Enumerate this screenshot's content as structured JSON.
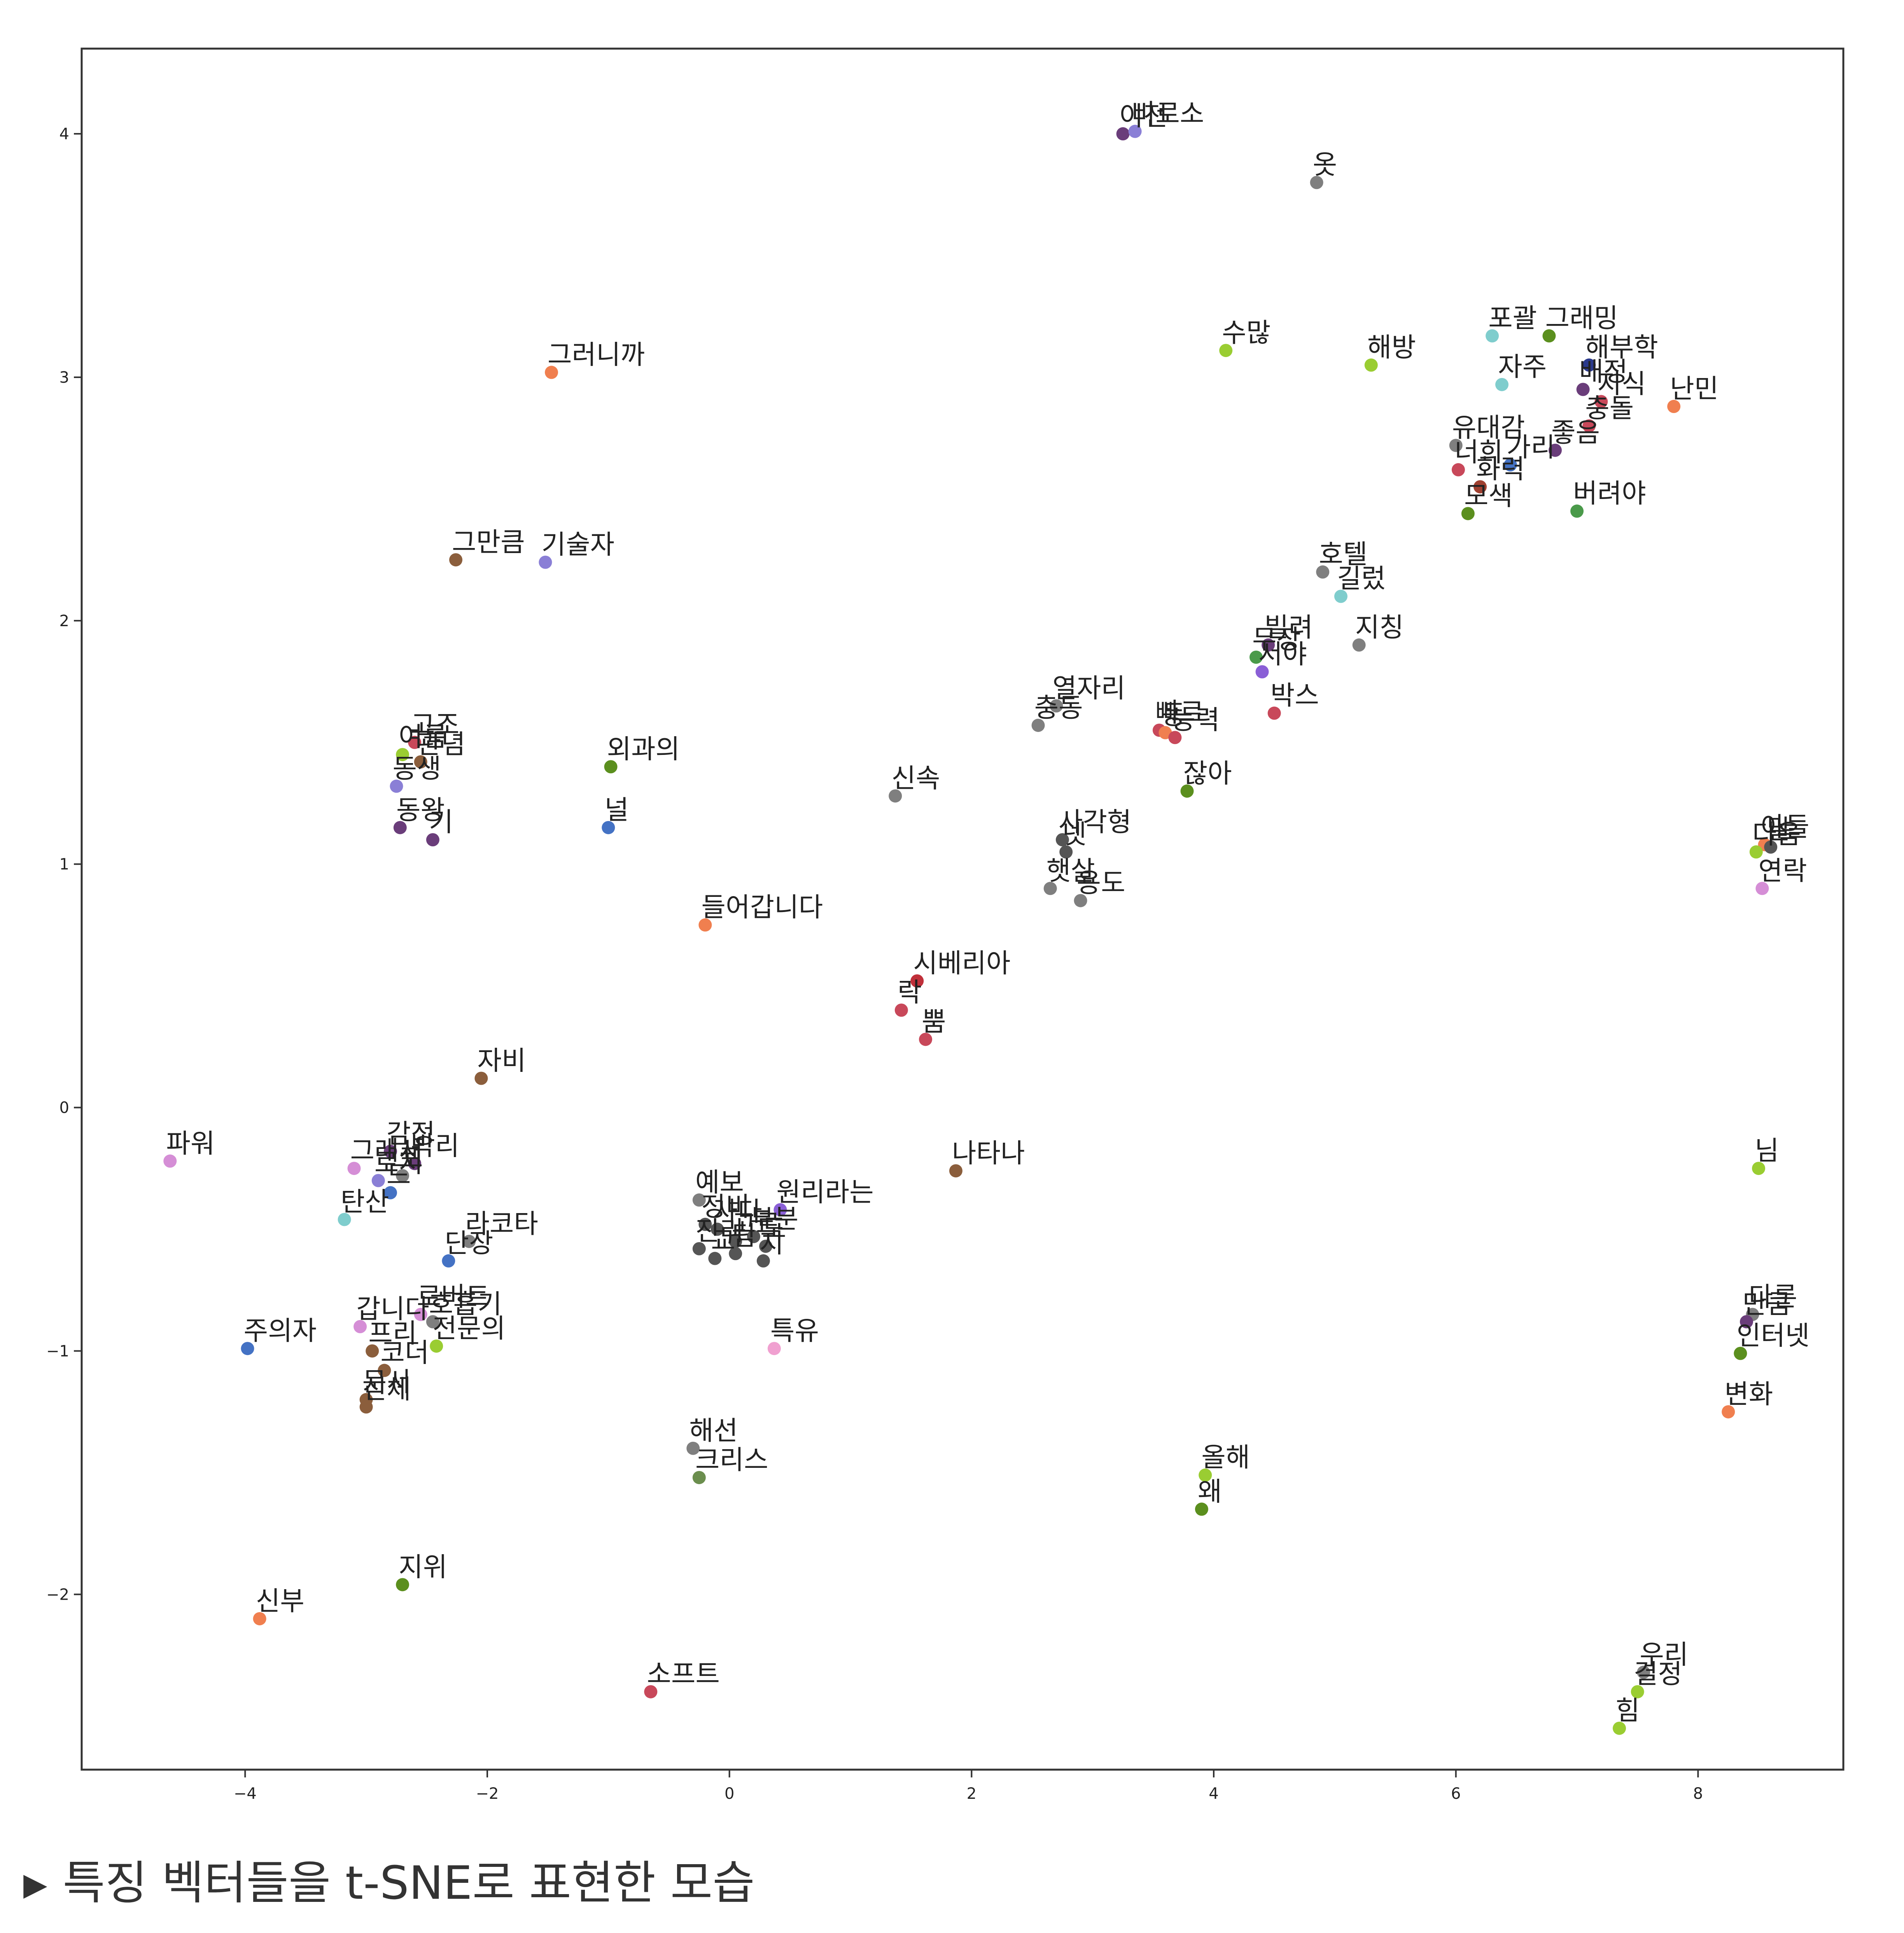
{
  "caption": {
    "marker": "▶",
    "text": "특징 벡터들을 t-SNE로 표현한 모습"
  },
  "chart_data": {
    "type": "scatter",
    "title": "",
    "xlabel": "",
    "ylabel": "",
    "xlim": [
      -5.35,
      9.2
    ],
    "ylim": [
      -2.72,
      4.35
    ],
    "grid": false,
    "xticks": [
      -4,
      -2,
      0,
      2,
      4,
      6,
      8
    ],
    "yticks": [
      -2,
      -1,
      0,
      1,
      2,
      3,
      4
    ],
    "points": [
      {
        "label": "이전",
        "x": 3.25,
        "y": 4.0,
        "color": "#6a3d7a"
      },
      {
        "label": "비로소",
        "x": 3.35,
        "y": 4.01,
        "color": "#8a7fd6"
      },
      {
        "label": "옷",
        "x": 4.85,
        "y": 3.8,
        "color": "#7f7f7f"
      },
      {
        "label": "해방",
        "x": 5.3,
        "y": 3.05,
        "color": "#9acd32"
      },
      {
        "label": "수많",
        "x": 4.1,
        "y": 3.11,
        "color": "#9acd32"
      },
      {
        "label": "포괄",
        "x": 6.3,
        "y": 3.17,
        "color": "#7fcdcd"
      },
      {
        "label": "자주",
        "x": 6.38,
        "y": 2.97,
        "color": "#7fcdcd"
      },
      {
        "label": "그래밍",
        "x": 6.77,
        "y": 3.17,
        "color": "#5b8f1e"
      },
      {
        "label": "해부학",
        "x": 7.1,
        "y": 3.05,
        "color": "#2b3a8c"
      },
      {
        "label": "배정",
        "x": 7.05,
        "y": 2.95,
        "color": "#6a3d7a"
      },
      {
        "label": "지식",
        "x": 7.2,
        "y": 2.9,
        "color": "#c8485a"
      },
      {
        "label": "난민",
        "x": 7.8,
        "y": 2.88,
        "color": "#f07f4f"
      },
      {
        "label": "유대감",
        "x": 6.0,
        "y": 2.72,
        "color": "#7f7f7f"
      },
      {
        "label": "충돌",
        "x": 7.1,
        "y": 2.8,
        "color": "#c8485a"
      },
      {
        "label": "좋음",
        "x": 6.82,
        "y": 2.7,
        "color": "#6a3d7a"
      },
      {
        "label": "너희",
        "x": 6.02,
        "y": 2.62,
        "color": "#c8485a"
      },
      {
        "label": "화력",
        "x": 6.2,
        "y": 2.55,
        "color": "#a04030"
      },
      {
        "label": "가리",
        "x": 6.45,
        "y": 2.64,
        "color": "#4472c4"
      },
      {
        "label": "모색",
        "x": 6.1,
        "y": 2.44,
        "color": "#5b8f1e"
      },
      {
        "label": "버려야",
        "x": 7.0,
        "y": 2.45,
        "color": "#4a9a4a"
      },
      {
        "label": "그러니까",
        "x": -1.47,
        "y": 3.02,
        "color": "#f07f4f"
      },
      {
        "label": "그만큼",
        "x": -2.26,
        "y": 2.25,
        "color": "#8b5e3c"
      },
      {
        "label": "기술자",
        "x": -1.52,
        "y": 2.24,
        "color": "#8a7fd6"
      },
      {
        "label": "호텔",
        "x": 4.9,
        "y": 2.2,
        "color": "#7f7f7f"
      },
      {
        "label": "길렀",
        "x": 5.05,
        "y": 2.1,
        "color": "#7fcdcd"
      },
      {
        "label": "빌려",
        "x": 4.45,
        "y": 1.9,
        "color": "#6a3d7a"
      },
      {
        "label": "무장",
        "x": 4.35,
        "y": 1.85,
        "color": "#4a9a4a"
      },
      {
        "label": "지칭",
        "x": 5.2,
        "y": 1.9,
        "color": "#7f7f7f"
      },
      {
        "label": "서야",
        "x": 4.4,
        "y": 1.79,
        "color": "#8a5fd6"
      },
      {
        "label": "박스",
        "x": 4.5,
        "y": 1.62,
        "color": "#c8485a"
      },
      {
        "label": "열자리",
        "x": 2.7,
        "y": 1.65,
        "color": "#7f7f7f"
      },
      {
        "label": "충동",
        "x": 2.55,
        "y": 1.57,
        "color": "#7f7f7f"
      },
      {
        "label": "빠르",
        "x": 3.55,
        "y": 1.55,
        "color": "#c8485a"
      },
      {
        "label": "등",
        "x": 3.6,
        "y": 1.54,
        "color": "#f07f4f"
      },
      {
        "label": "능력",
        "x": 3.68,
        "y": 1.52,
        "color": "#c8485a"
      },
      {
        "label": "잖아",
        "x": 3.78,
        "y": 1.3,
        "color": "#5b8f1e"
      },
      {
        "label": "신속",
        "x": 1.37,
        "y": 1.28,
        "color": "#7f7f7f"
      },
      {
        "label": "사각형",
        "x": 2.75,
        "y": 1.1,
        "color": "#555555"
      },
      {
        "label": "넷",
        "x": 2.78,
        "y": 1.05,
        "color": "#555555"
      },
      {
        "label": "햇살",
        "x": 2.65,
        "y": 0.9,
        "color": "#7f7f7f"
      },
      {
        "label": "용도",
        "x": 2.9,
        "y": 0.85,
        "color": "#7f7f7f"
      },
      {
        "label": "고조",
        "x": -2.6,
        "y": 1.5,
        "color": "#c8485a"
      },
      {
        "label": "여름",
        "x": -2.7,
        "y": 1.45,
        "color": "#9acd32"
      },
      {
        "label": "관념",
        "x": -2.55,
        "y": 1.42,
        "color": "#8b5e3c"
      },
      {
        "label": "동생",
        "x": -2.75,
        "y": 1.32,
        "color": "#8a7fd6"
      },
      {
        "label": "외과의",
        "x": -0.98,
        "y": 1.4,
        "color": "#5b8f1e"
      },
      {
        "label": "널",
        "x": -1.0,
        "y": 1.15,
        "color": "#4472c4"
      },
      {
        "label": "동왕",
        "x": -2.72,
        "y": 1.15,
        "color": "#6a3d7a"
      },
      {
        "label": "기",
        "x": -2.45,
        "y": 1.1,
        "color": "#6a3d7a"
      },
      {
        "label": "들어갑니다",
        "x": -0.2,
        "y": 0.75,
        "color": "#f07f4f"
      },
      {
        "label": "시베리아",
        "x": 1.55,
        "y": 0.52,
        "color": "#c0303a"
      },
      {
        "label": "락",
        "x": 1.42,
        "y": 0.4,
        "color": "#c8485a"
      },
      {
        "label": "뿜",
        "x": 1.62,
        "y": 0.28,
        "color": "#c8485a"
      },
      {
        "label": "파워",
        "x": -4.62,
        "y": -0.22,
        "color": "#d58ed6"
      },
      {
        "label": "자비",
        "x": -2.05,
        "y": 0.12,
        "color": "#8b5e3c"
      },
      {
        "label": "감정",
        "x": -2.8,
        "y": -0.18,
        "color": "#6a3d7a"
      },
      {
        "label": "그래서",
        "x": -3.1,
        "y": -0.25,
        "color": "#d58ed6"
      },
      {
        "label": "박리",
        "x": -2.6,
        "y": -0.23,
        "color": "#6a3d7a"
      },
      {
        "label": "로지",
        "x": -2.9,
        "y": -0.3,
        "color": "#8a7fd6"
      },
      {
        "label": "포",
        "x": -2.7,
        "y": -0.28,
        "color": "#7f7f7f"
      },
      {
        "label": "드",
        "x": -2.8,
        "y": -0.35,
        "color": "#4472c4"
      },
      {
        "label": "탄산",
        "x": -3.18,
        "y": -0.46,
        "color": "#7fcdcd"
      },
      {
        "label": "단장",
        "x": -2.32,
        "y": -0.63,
        "color": "#4472c4"
      },
      {
        "label": "라코타",
        "x": -2.15,
        "y": -0.55,
        "color": "#7f7f7f"
      },
      {
        "label": "나타나",
        "x": 1.87,
        "y": -0.26,
        "color": "#8b5e3c"
      },
      {
        "label": "예보",
        "x": -0.25,
        "y": -0.38,
        "color": "#7f7f7f"
      },
      {
        "label": "원리라는",
        "x": 0.42,
        "y": -0.42,
        "color": "#8a5fd6"
      },
      {
        "label": "정비",
        "x": -0.2,
        "y": -0.48,
        "color": "#555555"
      },
      {
        "label": "사다",
        "x": -0.1,
        "y": -0.5,
        "color": "#555555"
      },
      {
        "label": "고르",
        "x": 0.05,
        "y": -0.55,
        "color": "#555555"
      },
      {
        "label": "부분",
        "x": 0.2,
        "y": -0.53,
        "color": "#555555"
      },
      {
        "label": "진리",
        "x": -0.25,
        "y": -0.58,
        "color": "#555555"
      },
      {
        "label": "도",
        "x": 0.3,
        "y": -0.57,
        "color": "#555555"
      },
      {
        "label": "교",
        "x": -0.12,
        "y": -0.62,
        "color": "#555555"
      },
      {
        "label": "팀",
        "x": 0.05,
        "y": -0.6,
        "color": "#555555"
      },
      {
        "label": "지",
        "x": 0.28,
        "y": -0.63,
        "color": "#555555"
      },
      {
        "label": "주의자",
        "x": -3.98,
        "y": -0.99,
        "color": "#4472c4"
      },
      {
        "label": "갑니다",
        "x": -3.05,
        "y": -0.9,
        "color": "#d58ed6"
      },
      {
        "label": "로버트",
        "x": -2.55,
        "y": -0.85,
        "color": "#d58ed6"
      },
      {
        "label": "호흡기",
        "x": -2.45,
        "y": -0.88,
        "color": "#7f7f7f"
      },
      {
        "label": "프리",
        "x": -2.95,
        "y": -1.0,
        "color": "#8b5e3c"
      },
      {
        "label": "코더",
        "x": -2.85,
        "y": -1.08,
        "color": "#8b5e3c"
      },
      {
        "label": "전문의",
        "x": -2.42,
        "y": -0.98,
        "color": "#9acd32"
      },
      {
        "label": "문서",
        "x": -3.0,
        "y": -1.2,
        "color": "#8b5e3c"
      },
      {
        "label": "신체",
        "x": -3.0,
        "y": -1.23,
        "color": "#8b5e3c"
      },
      {
        "label": "특유",
        "x": 0.37,
        "y": -0.99,
        "color": "#f0a0d0"
      },
      {
        "label": "해선",
        "x": -0.3,
        "y": -1.4,
        "color": "#7f7f7f"
      },
      {
        "label": "크리스",
        "x": -0.25,
        "y": -1.52,
        "color": "#6b8e4e"
      },
      {
        "label": "올해",
        "x": 3.93,
        "y": -1.51,
        "color": "#9acd32"
      },
      {
        "label": "왜",
        "x": 3.9,
        "y": -1.65,
        "color": "#5b8f1e"
      },
      {
        "label": "신부",
        "x": -3.88,
        "y": -2.1,
        "color": "#f07f4f"
      },
      {
        "label": "지위",
        "x": -2.7,
        "y": -1.96,
        "color": "#5b8f1e"
      },
      {
        "label": "소프트",
        "x": -0.65,
        "y": -2.4,
        "color": "#c8485a"
      },
      {
        "label": "우리",
        "x": 7.55,
        "y": -2.32,
        "color": "#7f7f7f"
      },
      {
        "label": "결정",
        "x": 7.5,
        "y": -2.4,
        "color": "#9acd32"
      },
      {
        "label": "힘",
        "x": 7.35,
        "y": -2.55,
        "color": "#9acd32"
      },
      {
        "label": "아들",
        "x": 8.55,
        "y": 1.08,
        "color": "#f07f4f"
      },
      {
        "label": "다음",
        "x": 8.48,
        "y": 1.05,
        "color": "#9acd32"
      },
      {
        "label": "말",
        "x": 8.6,
        "y": 1.07,
        "color": "#555555"
      },
      {
        "label": "연락",
        "x": 8.53,
        "y": 0.9,
        "color": "#d58ed6"
      },
      {
        "label": "님",
        "x": 8.5,
        "y": -0.25,
        "color": "#9acd32"
      },
      {
        "label": "다른",
        "x": 8.45,
        "y": -0.85,
        "color": "#7f7f7f"
      },
      {
        "label": "만큼",
        "x": 8.4,
        "y": -0.88,
        "color": "#6a3d7a"
      },
      {
        "label": "인터넷",
        "x": 8.35,
        "y": -1.01,
        "color": "#5b8f1e"
      },
      {
        "label": "변화",
        "x": 8.25,
        "y": -1.25,
        "color": "#f07f4f"
      }
    ]
  }
}
